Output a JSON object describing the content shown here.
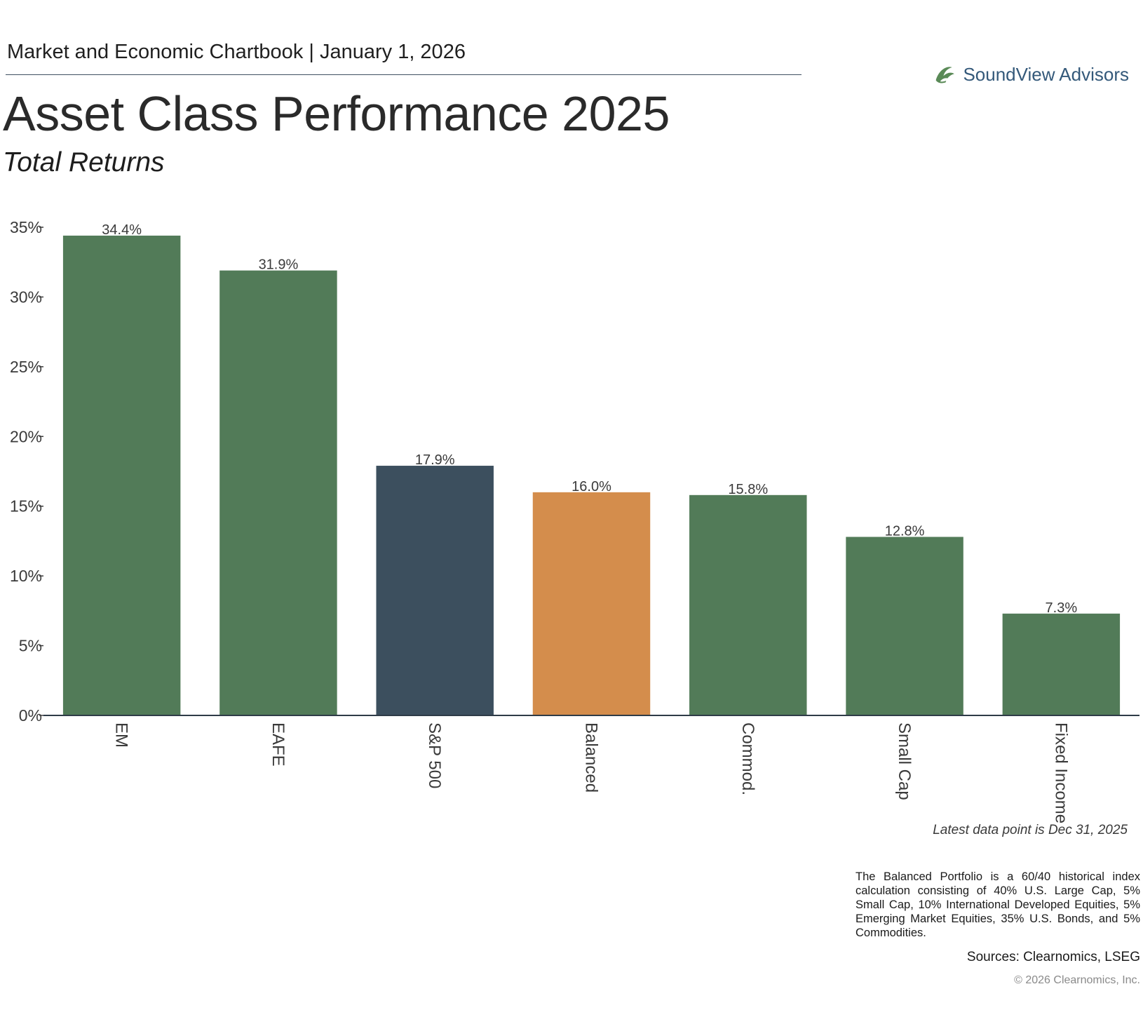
{
  "header": {
    "chartbook": "Market and Economic Chartbook | January 1, 2026",
    "title": "Asset Class Performance 2025",
    "subtitle": "Total Returns"
  },
  "logo": {
    "name": "SoundView Advisors",
    "icon": "wave-leaf-icon",
    "color": "#5a8a57"
  },
  "chart_data": {
    "type": "bar",
    "title": "Asset Class Performance 2025",
    "subtitle": "Total Returns",
    "categories": [
      "EM",
      "EAFE",
      "S&P 500",
      "Balanced",
      "Commod.",
      "Small Cap",
      "Fixed Income"
    ],
    "values": [
      34.4,
      31.9,
      17.9,
      16.0,
      15.8,
      12.8,
      7.3
    ],
    "value_labels": [
      "34.4%",
      "31.9%",
      "17.9%",
      "16.0%",
      "15.8%",
      "12.8%",
      "7.3%"
    ],
    "bar_colors": [
      "#527b58",
      "#527b58",
      "#3c4f5e",
      "#d48d4c",
      "#527b58",
      "#527b58",
      "#527b58"
    ],
    "y_ticks": [
      0,
      5,
      10,
      15,
      20,
      25,
      30,
      35
    ],
    "y_tick_labels": [
      "0%",
      "5%",
      "10%",
      "15%",
      "20%",
      "25%",
      "30%",
      "35%"
    ],
    "ylim": [
      0,
      35
    ],
    "xlabel": "",
    "ylabel": "",
    "grid": false,
    "x_label_orientation": "rotated-90-clockwise"
  },
  "notes": {
    "latest": "Latest data point is Dec 31, 2025",
    "balanced": "The Balanced Portfolio is a 60/40 historical index calculation consisting of 40% U.S. Large Cap, 5% Small Cap, 10% International Developed Equities, 5% Emerging Market Equities, 35% U.S. Bonds, and 5% Commodities.",
    "sources": "Sources: Clearnomics, LSEG",
    "copyright": "© 2026 Clearnomics, Inc."
  }
}
